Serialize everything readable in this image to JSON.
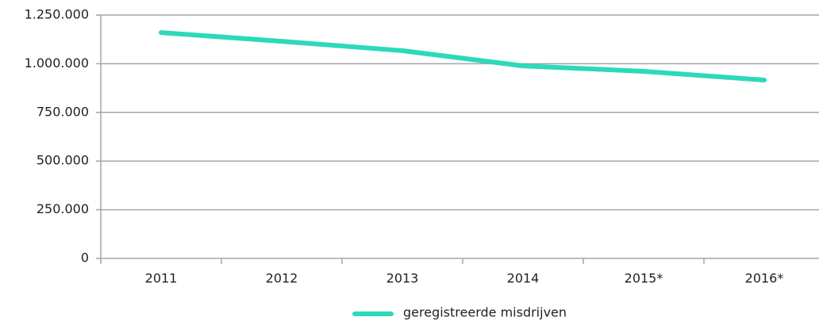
{
  "chart_data": {
    "type": "line",
    "categories": [
      "2011",
      "2012",
      "2013",
      "2014",
      "2015*",
      "2016*"
    ],
    "series": [
      {
        "name": "geregistreerde misdrijven",
        "color": "#2dd9b8",
        "values": [
          1160000,
          1115000,
          1067000,
          989000,
          961000,
          916000
        ]
      }
    ],
    "ylim": [
      0,
      1250000
    ],
    "yticks": [
      0,
      {
        "value": 250000,
        "label": "250.000"
      },
      {
        "value": 500000,
        "label": "500.000"
      },
      {
        "value": 750000,
        "label": "750.000"
      },
      {
        "value": 1000000,
        "label": "1.000.000"
      },
      {
        "value": 1250000,
        "label": "1.250.000"
      }
    ],
    "grid": true,
    "legend": "bottom"
  }
}
